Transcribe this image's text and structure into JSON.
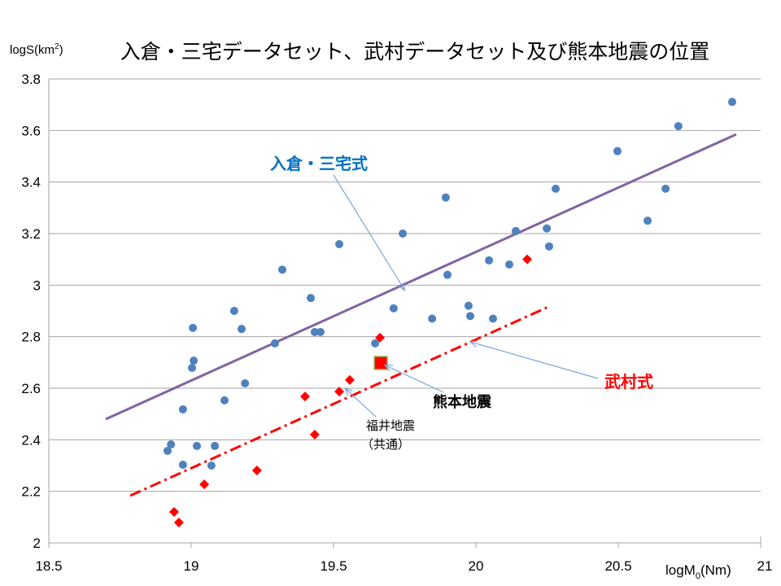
{
  "chart_data": {
    "type": "scatter",
    "title": "入倉・三宅データセット、武村データセット及び熊本地震の位置",
    "xlabel": "logM0(Nm)",
    "xlabel_parts": {
      "base": "logM",
      "sub": "0",
      "rest": "(Nm)"
    },
    "ylabel": "logS(km2)",
    "ylabel_parts": {
      "base": "logS(km",
      "sup": "2",
      "rest": ")"
    },
    "xlim": [
      18.5,
      21
    ],
    "ylim": [
      2,
      3.8
    ],
    "x_ticks": [
      "18.5",
      "19",
      "19.5",
      "20",
      "20.5",
      "21"
    ],
    "y_ticks": [
      "2",
      "2.2",
      "2.4",
      "2.6",
      "2.8",
      "3",
      "3.2",
      "3.4",
      "3.6",
      "3.8"
    ],
    "grid": "horizontal",
    "colors": {
      "irikura_points": "#4f81bd",
      "irikura_line": "#8064a2",
      "takemura": "#ff0000",
      "annotation_arrow": "#7ba7d8",
      "grid": "#a6a6a6"
    },
    "series": [
      {
        "marker": "circle",
        "color": "#4f81bd",
        "points": [
          [
            18.917,
            2.357
          ],
          [
            18.929,
            2.382
          ],
          [
            18.971,
            2.303
          ],
          [
            18.971,
            2.518
          ],
          [
            19.006,
            2.834
          ],
          [
            19.009,
            2.707
          ],
          [
            19.003,
            2.679
          ],
          [
            19.02,
            2.376
          ],
          [
            19.071,
            2.3
          ],
          [
            19.083,
            2.376
          ],
          [
            19.117,
            2.553
          ],
          [
            19.151,
            2.9
          ],
          [
            19.177,
            2.83
          ],
          [
            19.189,
            2.619
          ],
          [
            19.294,
            2.774
          ],
          [
            19.32,
            3.06
          ],
          [
            19.42,
            2.95
          ],
          [
            19.434,
            2.818
          ],
          [
            19.454,
            2.818
          ],
          [
            19.52,
            3.159
          ],
          [
            19.646,
            2.774
          ],
          [
            19.711,
            2.91
          ],
          [
            19.743,
            3.2
          ],
          [
            19.846,
            2.87
          ],
          [
            19.894,
            3.34
          ],
          [
            19.9,
            3.04
          ],
          [
            19.974,
            2.92
          ],
          [
            19.98,
            2.88
          ],
          [
            20.046,
            3.096
          ],
          [
            20.06,
            2.87
          ],
          [
            20.117,
            3.08
          ],
          [
            20.14,
            3.21
          ],
          [
            20.249,
            3.22
          ],
          [
            20.257,
            3.15
          ],
          [
            20.28,
            3.374
          ],
          [
            20.497,
            3.52
          ],
          [
            20.603,
            3.25
          ],
          [
            20.666,
            3.374
          ],
          [
            20.711,
            3.617
          ],
          [
            20.9,
            3.711
          ]
        ]
      },
      {
        "marker": "diamond",
        "color": "#ff0000",
        "points": [
          [
            18.94,
            2.12
          ],
          [
            18.957,
            2.079
          ],
          [
            19.046,
            2.227
          ],
          [
            19.231,
            2.281
          ],
          [
            19.4,
            2.568
          ],
          [
            19.434,
            2.42
          ],
          [
            19.52,
            2.587
          ],
          [
            19.557,
            2.632
          ],
          [
            19.663,
            2.796
          ],
          [
            20.18,
            3.1
          ]
        ]
      },
      {
        "marker": "square",
        "color": "#ff0000",
        "points": [
          [
            19.666,
            2.698
          ]
        ]
      }
    ],
    "lines": [
      {
        "name": "入倉・三宅式",
        "color": "#8064a2",
        "style": "solid",
        "from": [
          18.7,
          2.48
        ],
        "to": [
          20.914,
          3.585
        ]
      },
      {
        "name": "武村式",
        "color": "#ff0000",
        "style": "dashdot",
        "from": [
          18.786,
          2.183
        ],
        "to": [
          20.249,
          2.913
        ]
      }
    ],
    "annotations": [
      {
        "text": "入倉・三宅式",
        "color": "#0070c0",
        "bold": true,
        "target": [
          19.75,
          2.98
        ]
      },
      {
        "text": "武村式",
        "color": "#ff0000",
        "bold": true,
        "target": [
          19.98,
          2.78
        ]
      },
      {
        "text": "熊本地震",
        "color": "#000000",
        "bold": true,
        "target": [
          19.68,
          2.69
        ]
      },
      {
        "text": "福井地震",
        "text2": "（共通）",
        "color": "#000000",
        "bold": false,
        "target": [
          19.54,
          2.6
        ]
      }
    ]
  }
}
